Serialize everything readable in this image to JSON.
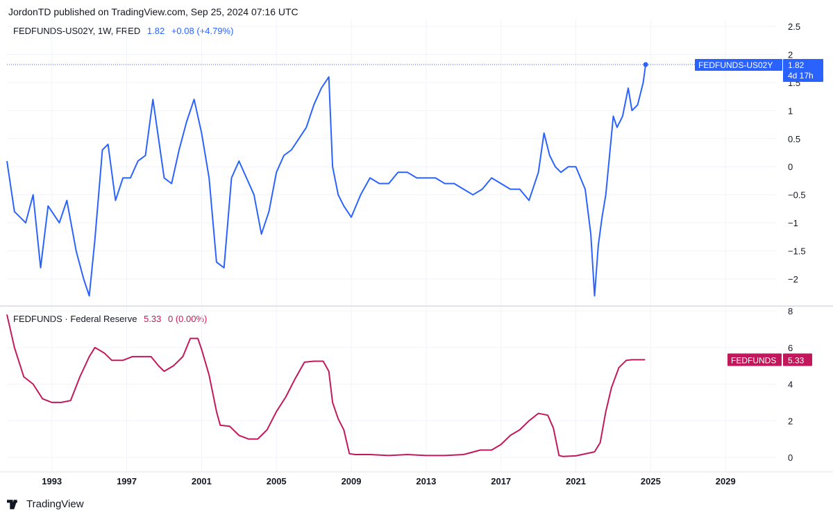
{
  "header": {
    "published": "JordonTD published on TradingView.com, Sep 25, 2024 07:16 UTC"
  },
  "footer": {
    "brand": "TradingView"
  },
  "colors": {
    "spread": "#2962ff",
    "fedfunds": "#c2185b",
    "grid": "#f0f3fa",
    "separator": "#e0e3eb"
  },
  "top_legend": {
    "name": "FEDFUNDS-US02Y, 1W, FRED",
    "last": "1.82",
    "change": "+0.08 (+4.79%)"
  },
  "bottom_legend": {
    "name": "FEDFUNDS · Federal Reserve",
    "last": "5.33",
    "change": "0 (0.00%)"
  },
  "top_tag": {
    "label": "FEDFUNDS-US02Y",
    "value": "1.82",
    "countdown": "4d 17h"
  },
  "bottom_tag": {
    "label": "FEDFUNDS",
    "value": "5.33"
  },
  "chart_data": [
    {
      "type": "line",
      "title": "FEDFUNDS-US02Y, 1W, FRED",
      "series_name": "FEDFUNDS-US02Y",
      "ylim": [
        -2.5,
        2.5
      ],
      "yticks": [
        "2.5",
        "2",
        "1.5",
        "1",
        "0.5",
        "0",
        "−0.5",
        "−1",
        "−1.5",
        "−2"
      ],
      "ytick_values": [
        2.5,
        2,
        1.5,
        1,
        0.5,
        0,
        -0.5,
        -1,
        -1.5,
        -2
      ],
      "x": [
        1990.6,
        1991.0,
        1991.6,
        1992.0,
        1992.4,
        1992.8,
        1993.4,
        1993.8,
        1994.3,
        1994.7,
        1995.0,
        1995.3,
        1995.7,
        1996.0,
        1996.4,
        1996.8,
        1997.2,
        1997.6,
        1998.0,
        1998.4,
        1998.7,
        1999.0,
        1999.4,
        1999.8,
        2000.2,
        2000.6,
        2001.0,
        2001.4,
        2001.8,
        2002.2,
        2002.6,
        2003.0,
        2003.4,
        2003.8,
        2004.2,
        2004.6,
        2005.0,
        2005.4,
        2005.8,
        2006.2,
        2006.6,
        2007.0,
        2007.4,
        2007.8,
        2008.0,
        2008.3,
        2008.6,
        2009.0,
        2009.5,
        2010.0,
        2010.5,
        2011.0,
        2011.5,
        2012.0,
        2012.5,
        2013.0,
        2013.5,
        2014.0,
        2014.5,
        2015.0,
        2015.5,
        2016.0,
        2016.5,
        2017.0,
        2017.5,
        2018.0,
        2018.5,
        2019.0,
        2019.3,
        2019.6,
        2019.9,
        2020.2,
        2020.6,
        2021.0,
        2021.5,
        2021.8,
        2022.0,
        2022.2,
        2022.4,
        2022.6,
        2022.8,
        2023.0,
        2023.2,
        2023.5,
        2023.8,
        2024.0,
        2024.3,
        2024.6,
        2024.73
      ],
      "y": [
        0.1,
        -0.8,
        -1.0,
        -0.5,
        -1.8,
        -0.7,
        -1.0,
        -0.6,
        -1.5,
        -2.0,
        -2.3,
        -1.3,
        0.3,
        0.4,
        -0.6,
        -0.2,
        -0.2,
        0.1,
        0.2,
        1.2,
        0.5,
        -0.2,
        -0.3,
        0.3,
        0.8,
        1.2,
        0.6,
        -0.2,
        -1.7,
        -1.8,
        -0.2,
        0.1,
        -0.2,
        -0.5,
        -1.2,
        -0.8,
        -0.1,
        0.2,
        0.3,
        0.5,
        0.7,
        1.1,
        1.4,
        1.6,
        0.0,
        -0.5,
        -0.7,
        -0.9,
        -0.5,
        -0.2,
        -0.3,
        -0.3,
        -0.1,
        -0.1,
        -0.2,
        -0.2,
        -0.2,
        -0.3,
        -0.3,
        -0.4,
        -0.5,
        -0.4,
        -0.2,
        -0.3,
        -0.4,
        -0.4,
        -0.6,
        -0.1,
        0.6,
        0.2,
        0.0,
        -0.1,
        0.0,
        0.0,
        -0.4,
        -1.2,
        -2.3,
        -1.4,
        -0.9,
        -0.5,
        0.2,
        0.9,
        0.7,
        0.9,
        1.4,
        1.0,
        1.1,
        1.5,
        1.82
      ]
    },
    {
      "type": "line",
      "title": "FEDFUNDS · Federal Reserve",
      "series_name": "FEDFUNDS",
      "ylim": [
        -0.5,
        8.0
      ],
      "yticks": [
        "8",
        "6",
        "4",
        "2",
        "0"
      ],
      "ytick_values": [
        8,
        6,
        4,
        2,
        0
      ],
      "x": [
        1990.6,
        1991.0,
        1991.5,
        1992.0,
        1992.5,
        1993.0,
        1993.5,
        1994.0,
        1994.5,
        1995.0,
        1995.3,
        1995.8,
        1996.2,
        1996.8,
        1997.3,
        1997.8,
        1998.3,
        1998.7,
        1999.0,
        1999.5,
        2000.0,
        2000.4,
        2000.8,
        2001.0,
        2001.4,
        2001.8,
        2002.0,
        2002.5,
        2003.0,
        2003.5,
        2004.0,
        2004.5,
        2005.0,
        2005.5,
        2006.0,
        2006.5,
        2007.0,
        2007.5,
        2007.8,
        2008.0,
        2008.3,
        2008.6,
        2008.9,
        2009.2,
        2010.0,
        2011.0,
        2012.0,
        2013.0,
        2014.0,
        2015.0,
        2015.9,
        2016.5,
        2017.0,
        2017.5,
        2018.0,
        2018.5,
        2019.0,
        2019.5,
        2019.8,
        2020.1,
        2020.3,
        2021.0,
        2022.0,
        2022.3,
        2022.6,
        2022.9,
        2023.3,
        2023.7,
        2024.0,
        2024.7
      ],
      "y": [
        7.8,
        6.0,
        4.4,
        4.0,
        3.2,
        3.0,
        3.0,
        3.1,
        4.4,
        5.5,
        6.0,
        5.7,
        5.3,
        5.3,
        5.5,
        5.5,
        5.5,
        5.0,
        4.7,
        5.0,
        5.5,
        6.5,
        6.5,
        5.9,
        4.5,
        2.5,
        1.75,
        1.7,
        1.2,
        1.0,
        1.0,
        1.5,
        2.5,
        3.3,
        4.3,
        5.2,
        5.25,
        5.25,
        4.7,
        3.0,
        2.1,
        1.5,
        0.2,
        0.15,
        0.15,
        0.1,
        0.15,
        0.1,
        0.1,
        0.15,
        0.4,
        0.4,
        0.7,
        1.2,
        1.5,
        2.0,
        2.4,
        2.3,
        1.6,
        0.1,
        0.05,
        0.08,
        0.3,
        0.8,
        2.5,
        3.8,
        4.9,
        5.3,
        5.33,
        5.33
      ]
    }
  ],
  "xaxis": {
    "labels": [
      "1993",
      "1997",
      "2001",
      "2005",
      "2009",
      "2013",
      "2017",
      "2021",
      "2025",
      "2029"
    ],
    "values": [
      1993,
      1997,
      2001,
      2005,
      2009,
      2013,
      2017,
      2021,
      2025,
      2029
    ],
    "range": [
      1990.6,
      2031.7
    ]
  }
}
